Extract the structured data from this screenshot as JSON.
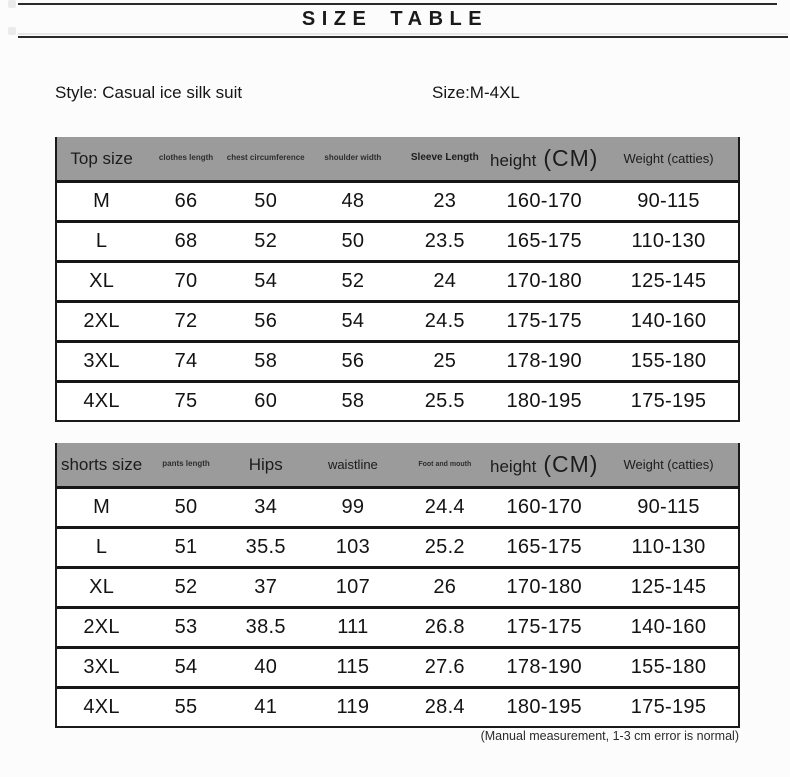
{
  "page": {
    "title": "SIZE TABLE",
    "style_label": "Style: Casual ice silk suit",
    "size_label": "Size:M-4XL",
    "footnote": "(Manual measurement, 1-3 cm error is normal)"
  },
  "colors": {
    "page_bg": "#fcfcfc",
    "table_header_bg": "#9b9b9b",
    "border": "#1a1a1a",
    "text": "#141414"
  },
  "tables": [
    {
      "title": "Top size",
      "headers": [
        {
          "label": "Top size"
        },
        {
          "label": "clothes length"
        },
        {
          "label": "chest circumference"
        },
        {
          "label": "shoulder width"
        },
        {
          "label": "Sleeve Length"
        },
        {
          "label": "height",
          "unit": "(CM)"
        },
        {
          "label": "Weight (catties)"
        }
      ],
      "rows": [
        [
          "M",
          "66",
          "50",
          "48",
          "23",
          "160-170",
          "90-115"
        ],
        [
          "L",
          "68",
          "52",
          "50",
          "23.5",
          "165-175",
          "110-130"
        ],
        [
          "XL",
          "70",
          "54",
          "52",
          "24",
          "170-180",
          "125-145"
        ],
        [
          "2XL",
          "72",
          "56",
          "54",
          "24.5",
          "175-175",
          "140-160"
        ],
        [
          "3XL",
          "74",
          "58",
          "56",
          "25",
          "178-190",
          "155-180"
        ],
        [
          "4XL",
          "75",
          "60",
          "58",
          "25.5",
          "180-195",
          "175-195"
        ]
      ]
    },
    {
      "title": "shorts size",
      "headers": [
        {
          "label": "shorts size"
        },
        {
          "label": "pants length"
        },
        {
          "label": "Hips"
        },
        {
          "label": "waistline"
        },
        {
          "label": "Foot and mouth"
        },
        {
          "label": "height",
          "unit": "(CM)"
        },
        {
          "label": "Weight (catties)"
        }
      ],
      "rows": [
        [
          "M",
          "50",
          "34",
          "99",
          "24.4",
          "160-170",
          "90-115"
        ],
        [
          "L",
          "51",
          "35.5",
          "103",
          "25.2",
          "165-175",
          "110-130"
        ],
        [
          "XL",
          "52",
          "37",
          "107",
          "26",
          "170-180",
          "125-145"
        ],
        [
          "2XL",
          "53",
          "38.5",
          "111",
          "26.8",
          "175-175",
          "140-160"
        ],
        [
          "3XL",
          "54",
          "40",
          "115",
          "27.6",
          "178-190",
          "155-180"
        ],
        [
          "4XL",
          "55",
          "41",
          "119",
          "28.4",
          "180-195",
          "175-195"
        ]
      ]
    }
  ]
}
